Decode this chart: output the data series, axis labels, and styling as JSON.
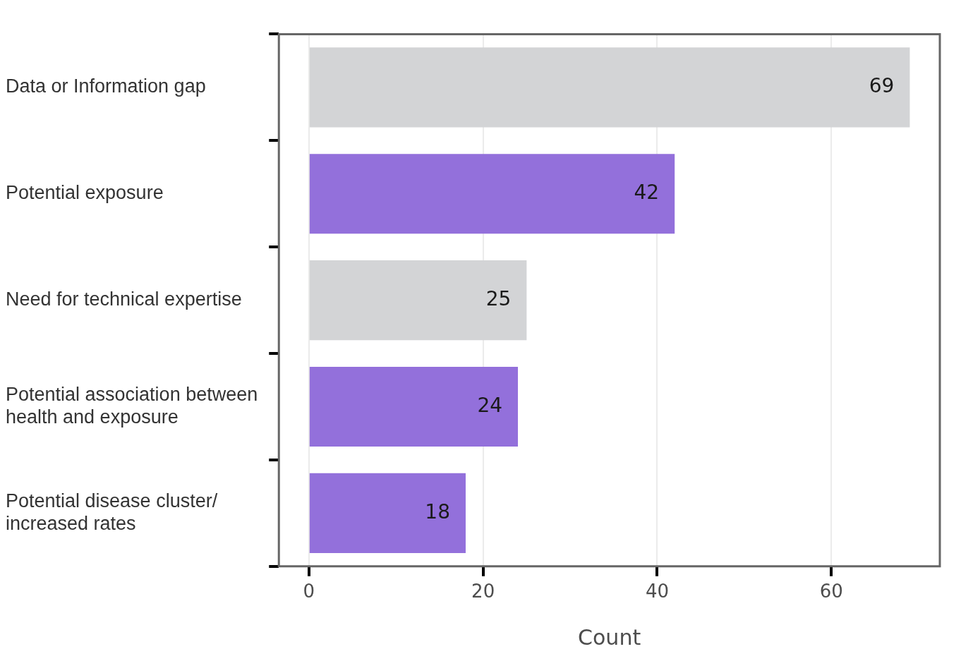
{
  "chart_data": {
    "type": "bar",
    "orientation": "horizontal",
    "xlabel": "Count",
    "categories": [
      "Data or Information gap",
      "Potential exposure",
      "Need for technical expertise",
      "Potential association between\nhealth and exposure",
      "Potential disease cluster/\nincreased rates"
    ],
    "values": [
      69,
      42,
      25,
      24,
      18
    ],
    "colors": [
      "#d3d4d6",
      "#9370db",
      "#d3d4d6",
      "#9370db",
      "#9370db"
    ],
    "xlim": [
      -3.45,
      72.45
    ],
    "xticks": [
      0,
      20,
      40,
      60
    ],
    "grid": "x",
    "data_labels": true,
    "legend": false
  }
}
